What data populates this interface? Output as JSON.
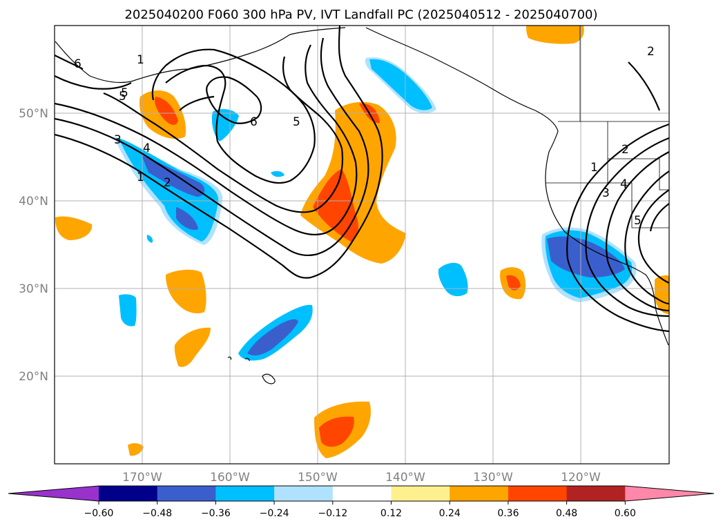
{
  "figure": {
    "title": "2025040200 F060 300 hPa PV, IVT Landfall PC (2025040512 - 2025040700)"
  },
  "map": {
    "lon_range": [
      -180,
      -110
    ],
    "lat_range": [
      10,
      60
    ],
    "lat_ticks": [
      {
        "value": 20,
        "label": "20°N"
      },
      {
        "value": 30,
        "label": "30°N"
      },
      {
        "value": 40,
        "label": "40°N"
      },
      {
        "value": 50,
        "label": "50°N"
      }
    ],
    "lon_ticks": [
      {
        "value": -170,
        "label": "170°W"
      },
      {
        "value": -160,
        "label": "160°W"
      },
      {
        "value": -150,
        "label": "150°W"
      },
      {
        "value": -140,
        "label": "140°W"
      },
      {
        "value": -130,
        "label": "130°W"
      },
      {
        "value": -120,
        "label": "120°W"
      }
    ],
    "grid": true
  },
  "colorbar": {
    "extend": "both",
    "colors": [
      "#9932cc",
      "#00008b",
      "#3a5fcd",
      "#00bfff",
      "#b0e2ff",
      "#ffffff",
      "#fff08f",
      "#ffa500",
      "#ff4500",
      "#b22222",
      "#ff88aa"
    ],
    "tick_labels": [
      "−0.60",
      "−0.48",
      "−0.36",
      "−0.24",
      "−0.12",
      "0.12",
      "0.24",
      "0.36",
      "0.48",
      "0.60"
    ]
  },
  "contours": {
    "labels": [
      "6",
      "5",
      "1",
      "5",
      "6",
      "5",
      "3",
      "4",
      "1",
      "2",
      "1",
      "2",
      "3",
      "4",
      "5",
      "2"
    ]
  }
}
